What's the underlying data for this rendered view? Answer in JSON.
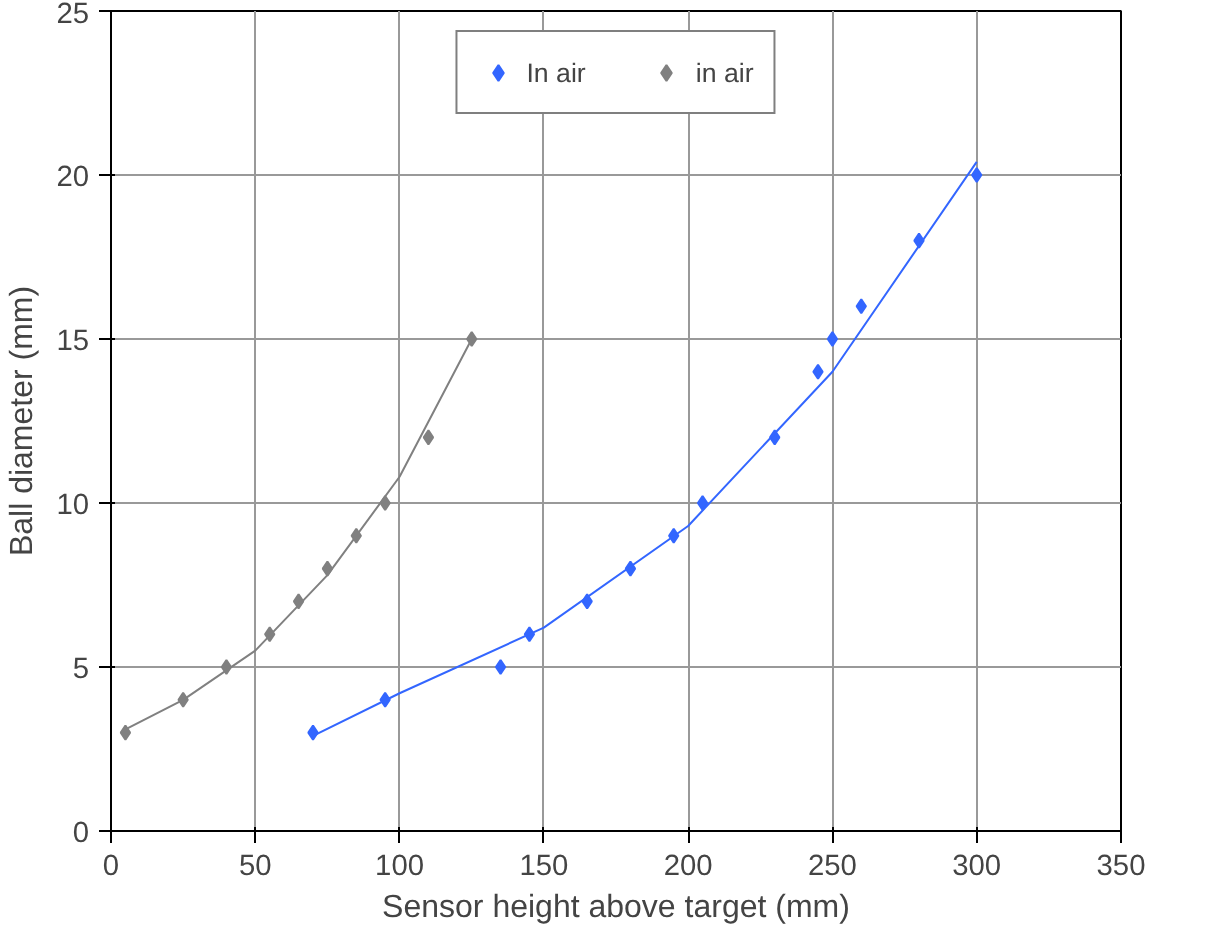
{
  "chart_data": {
    "type": "scatter",
    "xlabel": "Sensor height above target (mm)",
    "ylabel": "Ball diameter (mm)",
    "xlim": [
      0,
      350
    ],
    "ylim": [
      0,
      25
    ],
    "xticks": [
      0,
      50,
      100,
      150,
      200,
      250,
      300,
      350
    ],
    "yticks": [
      0,
      5,
      10,
      15,
      20,
      25
    ],
    "grid": true,
    "legend": "top",
    "marker": "diamond",
    "series": [
      {
        "name": "In air",
        "color": "#3366ff",
        "x": [
          70,
          95,
          135,
          145,
          165,
          180,
          195,
          205,
          230,
          245,
          250,
          260,
          280,
          300
        ],
        "values": [
          3,
          4,
          5,
          6,
          7,
          8,
          9,
          10,
          12,
          14,
          15,
          16,
          18,
          20
        ]
      },
      {
        "name": "in air",
        "color": "#808080",
        "x": [
          5,
          25,
          40,
          55,
          65,
          75,
          85,
          95,
          110,
          125
        ],
        "values": [
          3,
          4,
          5,
          6,
          7,
          8,
          9,
          10,
          12,
          15
        ]
      },
      {
        "type": "line",
        "color": "#3366ff",
        "marker": "none",
        "x": [
          70,
          100,
          150,
          200,
          250,
          300
        ],
        "values": [
          2.9,
          4.2,
          6.2,
          9.3,
          14.0,
          20.4
        ]
      },
      {
        "type": "line",
        "color": "#808080",
        "marker": "none",
        "x": [
          5,
          25,
          50,
          75,
          100,
          125
        ],
        "values": [
          3.1,
          4.0,
          5.5,
          7.8,
          10.8,
          15.0
        ]
      }
    ]
  }
}
